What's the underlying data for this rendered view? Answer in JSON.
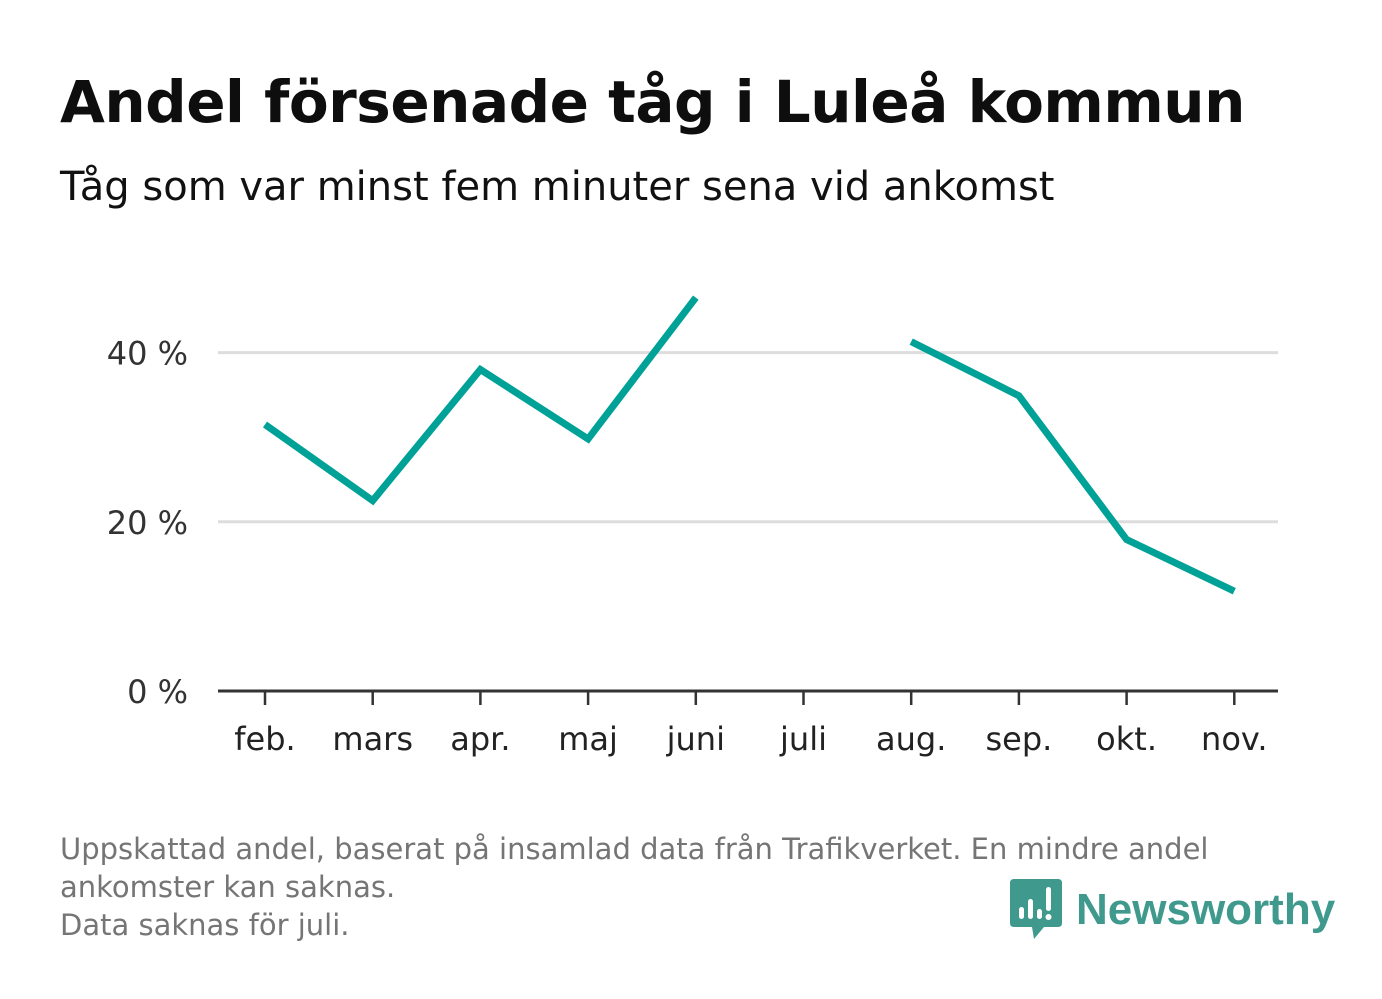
{
  "title": "Andel försenade tåg i Luleå kommun",
  "subtitle": "Tåg som var minst fem minuter sena vid ankomst",
  "footnote": {
    "line1": "Uppskattad andel, baserat på insamlad data från Trafikverket. En mindre andel",
    "line2": "ankomster kan saknas.",
    "line3": "Data saknas för juli."
  },
  "brand": {
    "name": "Newsworthy",
    "color": "#3f9a8d",
    "icon": "bar-chart-speech-bubble-icon"
  },
  "chart_data": {
    "type": "line",
    "categories": [
      "feb.",
      "mars",
      "apr.",
      "maj",
      "juni",
      "juli",
      "aug.",
      "sep.",
      "okt.",
      "nov."
    ],
    "series": [
      {
        "values": [
          31.5,
          22.5,
          38,
          29.8,
          46.5,
          null,
          41.3,
          34.9,
          17.9,
          11.8
        ],
        "color": "#00a197"
      }
    ],
    "yticks": [
      0,
      20,
      40
    ],
    "ytick_labels": [
      "0 %",
      "20 %",
      "40 %"
    ],
    "ylim": [
      0,
      50
    ],
    "grid": true,
    "missing": [
      "juli"
    ]
  }
}
